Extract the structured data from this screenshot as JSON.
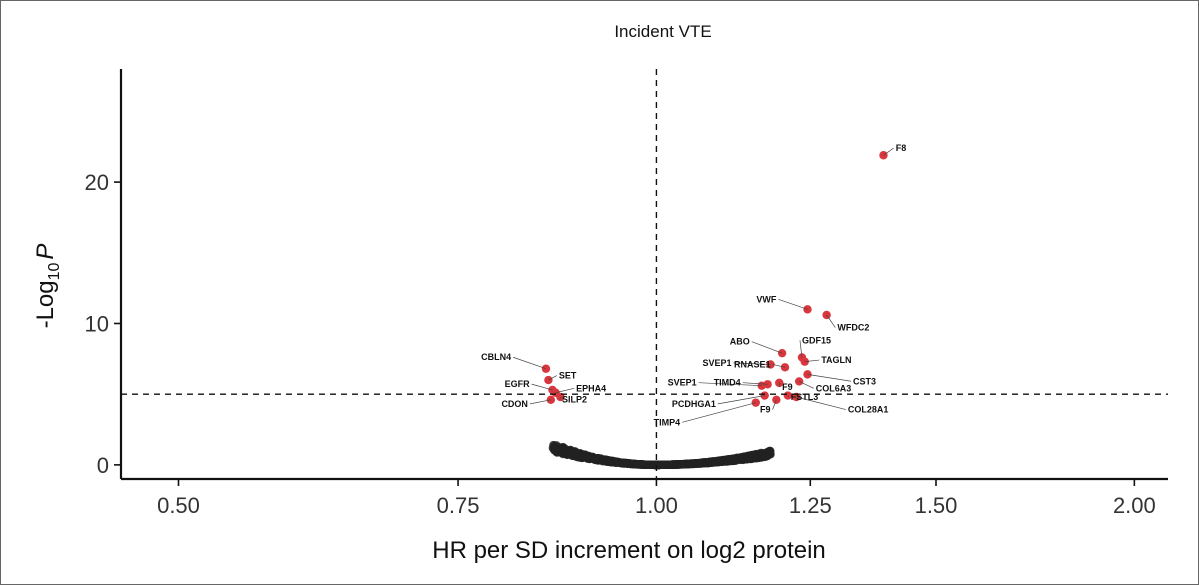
{
  "chart_data": {
    "type": "scatter",
    "title": "Incident VTE",
    "xlabel": "HR per SD increment on log2 protein",
    "ylabel_main": "-Log",
    "ylabel_sub": "10",
    "ylabel_var": "P",
    "x_scale": "log",
    "xlim": [
      0.46,
      2.1
    ],
    "ylim": [
      -1,
      28
    ],
    "x_ticks": [
      {
        "value": 0.5,
        "label": "0.50"
      },
      {
        "value": 0.75,
        "label": "0.75"
      },
      {
        "value": 1.0,
        "label": "1.00"
      },
      {
        "value": 1.25,
        "label": "1.25"
      },
      {
        "value": 1.5,
        "label": "1.50"
      },
      {
        "value": 2.0,
        "label": "2.00"
      }
    ],
    "y_ticks": [
      {
        "value": 0,
        "label": "0"
      },
      {
        "value": 10,
        "label": "10"
      },
      {
        "value": 20,
        "label": "20"
      }
    ],
    "vline_x": 1.0,
    "hline_y": 5.0,
    "grid": false,
    "colors": {
      "significant": "#d9363e",
      "nonsignificant": "#222222"
    },
    "significant_points": [
      {
        "label": "F8",
        "x": 1.39,
        "y": 21.9,
        "lx": 1.415,
        "ly": 22.2
      },
      {
        "label": "VWF",
        "x": 1.245,
        "y": 11.0,
        "lx": 1.19,
        "ly": 11.5
      },
      {
        "label": "WFDC2",
        "x": 1.28,
        "y": 10.6,
        "lx": 1.3,
        "ly": 9.5
      },
      {
        "label": "ABO",
        "x": 1.2,
        "y": 7.9,
        "lx": 1.145,
        "ly": 8.5
      },
      {
        "label": "GDF15",
        "x": 1.235,
        "y": 7.6,
        "lx": 1.235,
        "ly": 8.6
      },
      {
        "label": "TAGLN",
        "x": 1.24,
        "y": 7.3,
        "lx": 1.27,
        "ly": 7.2
      },
      {
        "label": "SVEP1",
        "x": 1.18,
        "y": 7.1,
        "lx": 1.115,
        "ly": 7.0
      },
      {
        "label": "RNASE1",
        "x": 1.205,
        "y": 6.9,
        "lx": 1.18,
        "ly": 6.9
      },
      {
        "label": "CST3",
        "x": 1.245,
        "y": 6.4,
        "lx": 1.33,
        "ly": 5.7
      },
      {
        "label": "SVEP1",
        "x": 1.165,
        "y": 5.6,
        "lx": 1.06,
        "ly": 5.6
      },
      {
        "label": "TIMD4",
        "x": 1.175,
        "y": 5.7,
        "lx": 1.13,
        "ly": 5.6
      },
      {
        "label": "F9",
        "x": 1.195,
        "y": 5.8,
        "lx": 1.2,
        "ly": 5.3
      },
      {
        "label": "COL6A3",
        "x": 1.23,
        "y": 5.9,
        "lx": 1.26,
        "ly": 5.2
      },
      {
        "label": "PCDHGA1",
        "x": 1.17,
        "y": 4.9,
        "lx": 1.09,
        "ly": 4.1
      },
      {
        "label": "FSTL3",
        "x": 1.21,
        "y": 4.9,
        "lx": 1.215,
        "ly": 4.6
      },
      {
        "label": "COL28A1",
        "x": 1.225,
        "y": 4.8,
        "lx": 1.32,
        "ly": 3.7
      },
      {
        "label": "F9",
        "x": 1.19,
        "y": 4.6,
        "lx": 1.18,
        "ly": 3.7
      },
      {
        "label": "TIMP4",
        "x": 1.155,
        "y": 4.4,
        "lx": 1.035,
        "ly": 2.8
      },
      {
        "label": "CBLN4",
        "x": 0.852,
        "y": 6.8,
        "lx": 0.81,
        "ly": 7.4
      },
      {
        "label": "SET",
        "x": 0.855,
        "y": 6.0,
        "lx": 0.868,
        "ly": 6.1
      },
      {
        "label": "EGFR",
        "x": 0.86,
        "y": 5.3,
        "lx": 0.832,
        "ly": 5.5
      },
      {
        "label": "EPHA4",
        "x": 0.864,
        "y": 5.1,
        "lx": 0.89,
        "ly": 5.2
      },
      {
        "label": "CDON",
        "x": 0.858,
        "y": 4.6,
        "lx": 0.83,
        "ly": 4.1
      },
      {
        "label": "SILP2",
        "x": 0.87,
        "y": 4.8,
        "lx": 0.872,
        "ly": 4.4
      }
    ]
  }
}
